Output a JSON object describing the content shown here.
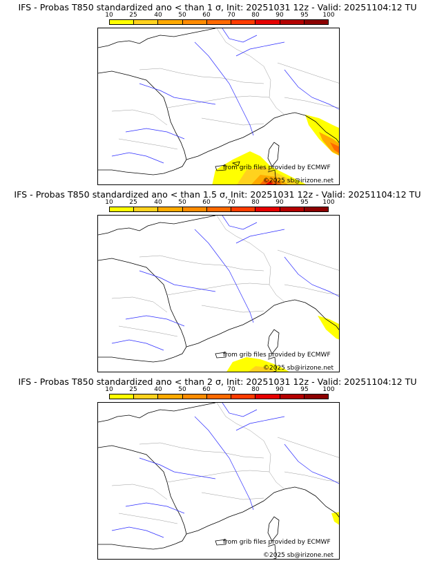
{
  "colorbar": {
    "ticks": [
      "10",
      "25",
      "40",
      "50",
      "60",
      "70",
      "80",
      "90",
      "95",
      "100"
    ],
    "colors": [
      "#ffff00",
      "#ffd21e",
      "#ffaa00",
      "#ff8c00",
      "#ff6a00",
      "#ff3c00",
      "#e60000",
      "#b40000",
      "#8c0000",
      "#5a0000"
    ]
  },
  "credits": {
    "source": "from grib files provided by ECMWF",
    "copyright": "©2025 sb@irizone.net"
  },
  "panels": [
    {
      "title": "IFS - Probas T850  standardized ano < than 1 σ, Init: 20251031 12z - Valid: 20251104:12 TU"
    },
    {
      "title": "IFS - Probas T850  standardized ano < than 1.5 σ, Init: 20251031 12z - Valid: 20251104:12 TU"
    },
    {
      "title": "IFS - Probas T850  standardized ano < than 2 σ, Init: 20251031 12z - Valid: 20251104:12 TU"
    }
  ]
}
